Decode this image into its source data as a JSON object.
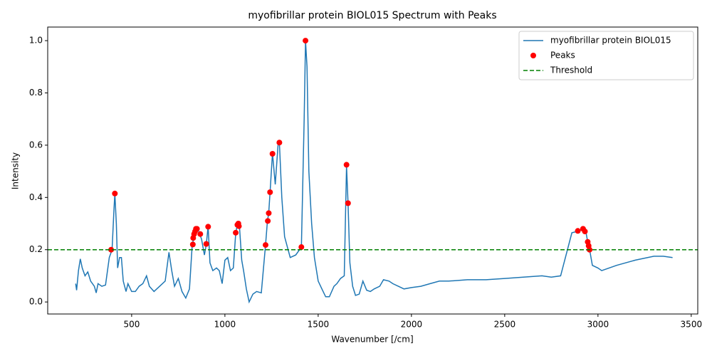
{
  "chart_data": {
    "type": "line",
    "title": "myofibrillar protein BIOL015 Spectrum with Peaks",
    "xlabel": "Wavenumber [/cm]",
    "ylabel": "Intensity",
    "xlim": [
      50,
      3535
    ],
    "ylim": [
      -0.046,
      1.052
    ],
    "xticks": [
      500,
      1000,
      1500,
      2000,
      2500,
      3000,
      3500
    ],
    "yticks": [
      {
        "value": 0,
        "label": "0.0"
      },
      {
        "value": 0.2,
        "label": "0.2"
      },
      {
        "value": 0.4,
        "label": "0.4"
      },
      {
        "value": 0.6,
        "label": "0.6"
      },
      {
        "value": 0.8,
        "label": "0.8"
      },
      {
        "value": 1.0,
        "label": "1.0"
      }
    ],
    "legend": "upper right",
    "series": [
      {
        "name": "myofibrillar protein BIOL015",
        "color": "#1f77b4",
        "x": [
          200,
          205,
          215,
          225,
          235,
          250,
          265,
          280,
          300,
          310,
          320,
          340,
          360,
          380,
          395,
          405,
          410,
          418,
          425,
          435,
          445,
          455,
          470,
          480,
          500,
          520,
          540,
          560,
          580,
          595,
          620,
          650,
          680,
          700,
          715,
          730,
          750,
          770,
          790,
          810,
          825,
          835,
          848,
          860,
          875,
          890,
          900,
          910,
          920,
          935,
          955,
          970,
          985,
          1000,
          1015,
          1030,
          1045,
          1058,
          1068,
          1078,
          1090,
          1100,
          1115,
          1130,
          1150,
          1170,
          1195,
          1218,
          1228,
          1235,
          1242,
          1255,
          1270,
          1285,
          1292,
          1305,
          1320,
          1350,
          1380,
          1410,
          1425,
          1432,
          1440,
          1450,
          1465,
          1480,
          1500,
          1520,
          1540,
          1560,
          1585,
          1600,
          1620,
          1640,
          1652,
          1660,
          1670,
          1685,
          1700,
          1720,
          1740,
          1760,
          1780,
          1800,
          1830,
          1850,
          1880,
          1900,
          1930,
          1960,
          2000,
          2050,
          2100,
          2150,
          2200,
          2300,
          2400,
          2500,
          2600,
          2700,
          2750,
          2800,
          2860,
          2890,
          2925,
          2935,
          2945,
          2955,
          2970,
          3000,
          3020,
          3100,
          3200,
          3300,
          3350,
          3400
        ],
        "values": [
          0.07,
          0.045,
          0.12,
          0.165,
          0.13,
          0.1,
          0.115,
          0.08,
          0.06,
          0.035,
          0.07,
          0.06,
          0.065,
          0.17,
          0.2,
          0.35,
          0.415,
          0.3,
          0.13,
          0.17,
          0.17,
          0.08,
          0.04,
          0.07,
          0.04,
          0.04,
          0.06,
          0.07,
          0.1,
          0.06,
          0.04,
          0.06,
          0.08,
          0.19,
          0.12,
          0.06,
          0.09,
          0.04,
          0.015,
          0.05,
          0.22,
          0.25,
          0.28,
          0.27,
          0.24,
          0.18,
          0.22,
          0.29,
          0.15,
          0.12,
          0.13,
          0.12,
          0.07,
          0.16,
          0.17,
          0.12,
          0.13,
          0.265,
          0.3,
          0.29,
          0.16,
          0.12,
          0.05,
          0.0,
          0.03,
          0.04,
          0.035,
          0.22,
          0.31,
          0.34,
          0.42,
          0.57,
          0.45,
          0.6,
          0.61,
          0.4,
          0.25,
          0.17,
          0.18,
          0.21,
          0.7,
          1.0,
          0.9,
          0.5,
          0.3,
          0.17,
          0.08,
          0.05,
          0.02,
          0.02,
          0.06,
          0.07,
          0.09,
          0.1,
          0.52,
          0.38,
          0.15,
          0.06,
          0.025,
          0.03,
          0.08,
          0.045,
          0.04,
          0.05,
          0.06,
          0.085,
          0.08,
          0.07,
          0.06,
          0.05,
          0.055,
          0.06,
          0.07,
          0.08,
          0.08,
          0.085,
          0.085,
          0.09,
          0.095,
          0.1,
          0.095,
          0.1,
          0.265,
          0.27,
          0.28,
          0.27,
          0.23,
          0.2,
          0.14,
          0.13,
          0.12,
          0.14,
          0.16,
          0.175,
          0.175,
          0.17
        ]
      },
      {
        "name": "Peaks",
        "color": "#ff0000",
        "type": "scatter",
        "x": [
          390,
          410,
          828,
          830,
          835,
          840,
          845,
          850,
          868,
          900,
          910,
          1058,
          1067,
          1072,
          1075,
          1218,
          1230,
          1235,
          1242,
          1255,
          1292,
          1410,
          1432,
          1652,
          1660,
          2892,
          2920,
          2930,
          2945,
          2950,
          2955
        ],
        "values": [
          0.2,
          0.415,
          0.22,
          0.245,
          0.26,
          0.27,
          0.28,
          0.28,
          0.26,
          0.222,
          0.288,
          0.265,
          0.295,
          0.3,
          0.29,
          0.218,
          0.31,
          0.34,
          0.42,
          0.567,
          0.61,
          0.21,
          1.0,
          0.525,
          0.378,
          0.272,
          0.28,
          0.27,
          0.23,
          0.215,
          0.2
        ]
      }
    ],
    "threshold": {
      "name": "Threshold",
      "color": "#008000",
      "value": 0.2
    }
  }
}
